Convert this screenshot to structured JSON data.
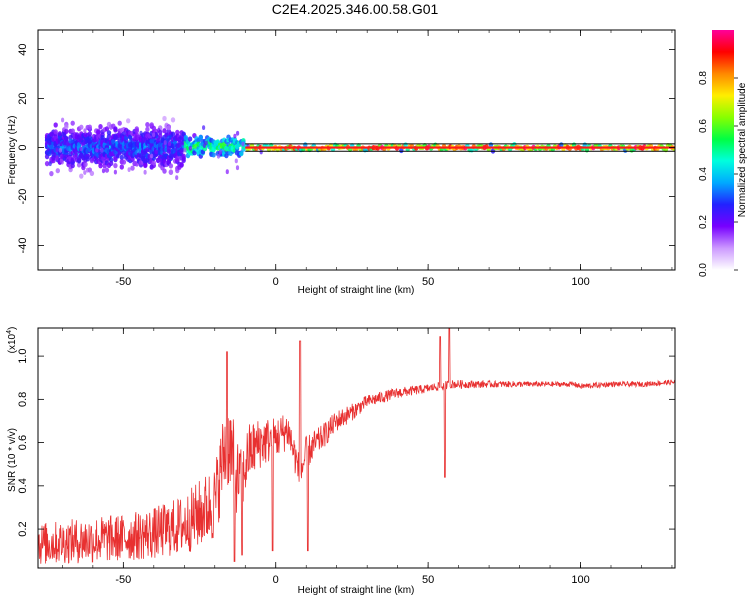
{
  "title": "C2E4.2025.346.00.58.G01",
  "colors": {
    "snr_line": "#e83030",
    "trace": "#ff1a1a",
    "band": "#000000"
  },
  "chart_data": [
    {
      "type": "heatmap",
      "title": "C2E4.2025.346.00.58.G01",
      "xlabel": "Height of straight line (km)",
      "ylabel": "Frequency (Hz)",
      "xlim": [
        -78,
        131
      ],
      "ylim": [
        -50,
        48
      ],
      "xticks": [
        -50,
        0,
        50,
        100
      ],
      "yticks": [
        -40,
        -20,
        0,
        20,
        40
      ],
      "xtick_labels": [
        "-50",
        "0",
        "50",
        "100"
      ],
      "ytick_labels": [
        "-40",
        "-20",
        "0",
        "20",
        "40"
      ],
      "colorbar": {
        "label": "Normalized spectral amplitude",
        "range": [
          0,
          1
        ],
        "ticks": [
          0.0,
          0.2,
          0.4,
          0.6,
          0.8
        ],
        "tick_labels": [
          "0.0",
          "0.2",
          "0.4",
          "0.6",
          "0.8"
        ],
        "colormap": [
          "#ffffff",
          "#cc99ff",
          "#7700ff",
          "#2222ff",
          "#00aaff",
          "#00ffdd",
          "#00ff44",
          "#88ff00",
          "#ffee00",
          "#ff8800",
          "#ff0000",
          "#ff0099"
        ]
      },
      "band_hz": [
        -1.5,
        1.5
      ],
      "segments": [
        {
          "x_from": -75,
          "x_to": -30,
          "center_hz": 0,
          "spread_hz": 8,
          "peak": 0.35
        },
        {
          "x_from": -30,
          "x_to": -10,
          "center_hz": 0.5,
          "spread_hz": 4,
          "peak": 0.6
        },
        {
          "x_from": -10,
          "x_to": 131,
          "center_hz": 0,
          "spread_hz": 1,
          "peak": 0.98
        }
      ]
    },
    {
      "type": "line",
      "xlabel": "Height of straight line (km)",
      "ylabel": "SNR (10 * v/v)",
      "scale_label": "(x10",
      "scale_exp": "4",
      "scale_close": ")",
      "xlim": [
        -78,
        131
      ],
      "ylim": [
        0.02,
        1.13
      ],
      "xticks": [
        -50,
        0,
        50,
        100
      ],
      "yticks": [
        0.2,
        0.4,
        0.6,
        0.8,
        1.0
      ],
      "xtick_labels": [
        "-50",
        "0",
        "50",
        "100"
      ],
      "ytick_labels": [
        "0.2",
        "0.4",
        "0.6",
        "0.8",
        "1.0"
      ],
      "series": [
        {
          "name": "SNR",
          "x": [
            -78,
            -70,
            -60,
            -50,
            -40,
            -30,
            -25,
            -20,
            -17,
            -15,
            -13,
            -11,
            -9,
            -5,
            0,
            4,
            8,
            10,
            12,
            15,
            20,
            25,
            30,
            40,
            50,
            53,
            55,
            57,
            60,
            70,
            80,
            90,
            98,
            100,
            110,
            120,
            131
          ],
          "y": [
            0.13,
            0.14,
            0.15,
            0.16,
            0.18,
            0.22,
            0.27,
            0.32,
            0.55,
            0.6,
            0.45,
            0.42,
            0.55,
            0.6,
            0.62,
            0.66,
            0.45,
            0.55,
            0.58,
            0.62,
            0.7,
            0.74,
            0.79,
            0.83,
            0.85,
            0.86,
            0.86,
            0.87,
            0.87,
            0.87,
            0.87,
            0.87,
            0.87,
            0.86,
            0.87,
            0.87,
            0.88
          ],
          "noise": [
            0.1,
            0.1,
            0.11,
            0.11,
            0.12,
            0.14,
            0.16,
            0.18,
            0.2,
            0.2,
            0.18,
            0.14,
            0.14,
            0.12,
            0.1,
            0.09,
            0.08,
            0.08,
            0.07,
            0.06,
            0.05,
            0.04,
            0.03,
            0.025,
            0.02,
            0.02,
            0.02,
            0.02,
            0.02,
            0.016,
            0.014,
            0.012,
            0.012,
            0.014,
            0.012,
            0.012,
            0.012
          ],
          "features": [
            {
              "x": -16,
              "y": 1.02
            },
            {
              "x": -13.5,
              "y": 0.05
            },
            {
              "x": -11,
              "y": 0.08
            },
            {
              "x": -1,
              "y": 0.1
            },
            {
              "x": 8,
              "y": 1.07
            },
            {
              "x": 10.5,
              "y": 0.1
            },
            {
              "x": 54,
              "y": 1.09
            },
            {
              "x": 55.5,
              "y": 0.44
            },
            {
              "x": 57,
              "y": 1.13
            }
          ]
        }
      ]
    }
  ]
}
